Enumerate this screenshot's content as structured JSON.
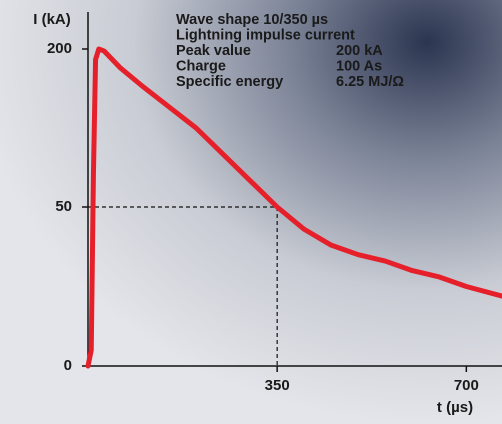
{
  "chart_data": {
    "type": "line",
    "annotations": [
      {
        "label": "Wave shape 10/350 µs"
      },
      {
        "label": "Lightning impulse current"
      },
      {
        "label": "Peak value",
        "value": "200 kA"
      },
      {
        "label": "Charge",
        "value": "100 As"
      },
      {
        "label": "Specific energy",
        "value": "6.25 MJ/Ω"
      }
    ],
    "ylabel": "I (kA)",
    "xlabel": "t (µs)",
    "x": [
      0,
      6,
      10,
      14,
      20,
      30,
      60,
      100,
      150,
      200,
      250,
      300,
      350,
      400,
      450,
      500,
      550,
      600,
      650,
      700,
      766
    ],
    "series": [
      {
        "color": "#e5202b",
        "values": [
          0,
          5,
          80,
          190,
          200,
          198,
          182,
          165,
          145,
          125,
          100,
          75,
          50,
          43,
          38,
          35,
          33,
          30,
          28,
          25,
          22
        ]
      }
    ],
    "reference": {
      "x": 350,
      "y": 50
    },
    "xlim": [
      0,
      766
    ],
    "xticks": [
      350,
      700
    ],
    "ylim": [
      0,
      200
    ],
    "yticks": [
      0,
      50,
      200
    ]
  }
}
